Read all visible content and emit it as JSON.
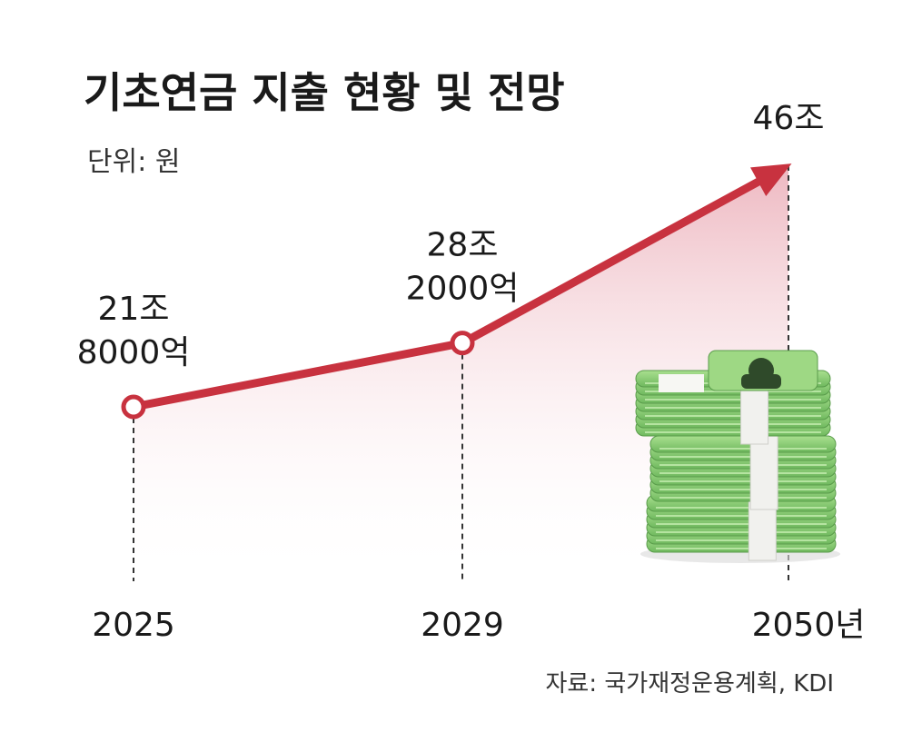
{
  "chart_data": {
    "type": "line",
    "title": "기초연금 지출 현황 및 전망",
    "unit_label": "단위: 원",
    "source": "자료: 국가재정운용계획, KDI",
    "xlabel": "",
    "ylabel": "",
    "categories": [
      "2025",
      "2029",
      "2050년"
    ],
    "values": [
      21.8,
      28.2,
      46
    ],
    "value_labels": [
      [
        "21조",
        "8000억"
      ],
      [
        "28조",
        "2000억"
      ],
      [
        "46조"
      ]
    ],
    "ylim": [
      0,
      50
    ],
    "grid": false,
    "legend": "none",
    "colors": {
      "line": "#c8323f",
      "marker_fill": "#ffffff",
      "area_top": "#e8a0ac",
      "area_bottom": "#ffffff"
    }
  },
  "icons": {
    "illustration": "money-stack-icon"
  }
}
